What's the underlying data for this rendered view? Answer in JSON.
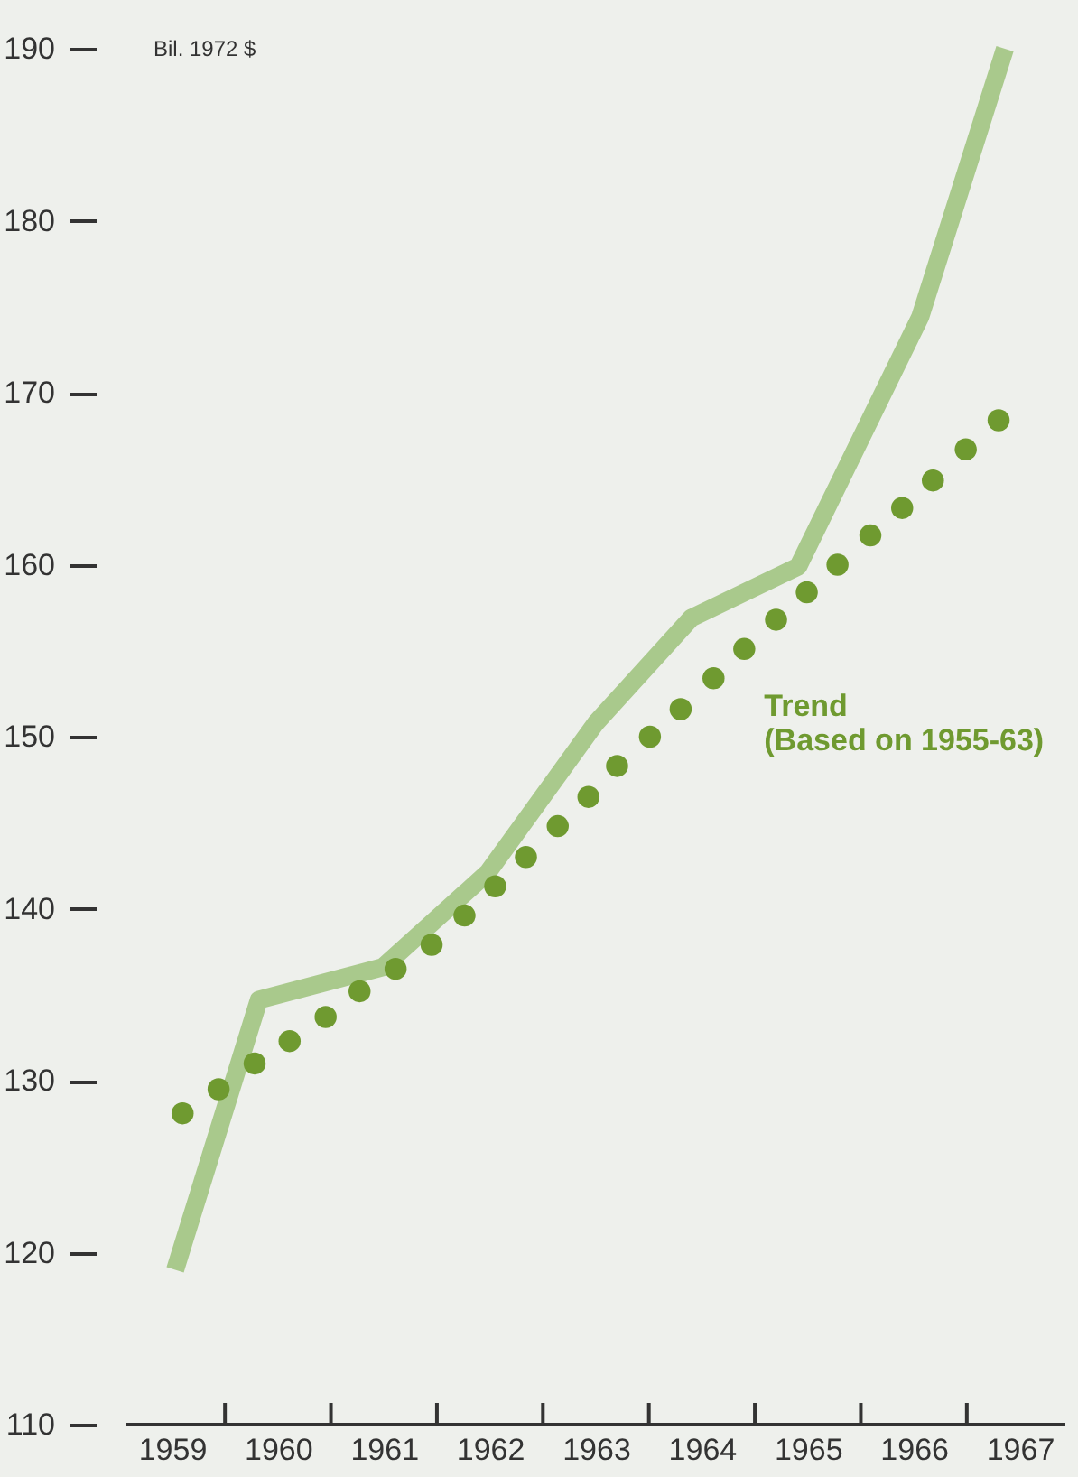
{
  "chart_data": {
    "type": "line",
    "ylabel": "Bil. 1972 $",
    "xlim": [
      1958.57,
      1967.43
    ],
    "ylim": [
      110,
      190
    ],
    "xticks": [
      1959,
      1960,
      1961,
      1962,
      1963,
      1964,
      1965,
      1966,
      1967,
      {
        "value": 1959.5,
        "label": null
      },
      {
        "value": 1960.5,
        "label": null
      },
      {
        "value": 1961.5,
        "label": null
      },
      {
        "value": 1962.5,
        "label": null
      },
      {
        "value": 1963.5,
        "label": null
      },
      {
        "value": 1964.5,
        "label": null
      },
      {
        "value": 1965.5,
        "label": null
      },
      {
        "value": 1966.5,
        "label": null
      }
    ],
    "yticks": [
      110,
      120,
      130,
      140,
      150,
      160,
      170,
      180,
      190
    ],
    "grid": false,
    "legend": false,
    "series": [
      {
        "color": "#a9c98c",
        "x": [
          1959.03,
          1959.82,
          1960.99,
          1961.98,
          1963.0,
          1963.9,
          1964.91,
          1966.06,
          1966.86
        ],
        "values": [
          119,
          134.7,
          136.6,
          142.1,
          150.8,
          156.9,
          159.9,
          174.4,
          190
        ]
      },
      {
        "type": "scatter",
        "name": "Trend\n(Based on 1955-63)",
        "color": "#6f9a30",
        "marker": "circle",
        "x": [
          1959.1,
          1959.44,
          1959.78,
          1960.11,
          1960.45,
          1960.77,
          1961.11,
          1961.45,
          1961.76,
          1962.05,
          1962.34,
          1962.64,
          1962.93,
          1963.2,
          1963.51,
          1963.8,
          1964.11,
          1964.4,
          1964.7,
          1964.99,
          1965.28,
          1965.59,
          1965.89,
          1966.18,
          1966.49,
          1966.8
        ],
        "values": [
          128.1,
          129.5,
          131.0,
          132.3,
          133.7,
          135.2,
          136.5,
          137.9,
          139.6,
          141.3,
          143.0,
          144.8,
          146.5,
          148.3,
          150.0,
          151.6,
          153.4,
          155.1,
          156.8,
          158.4,
          160.0,
          161.7,
          163.3,
          164.9,
          166.7,
          168.4
        ]
      }
    ]
  }
}
